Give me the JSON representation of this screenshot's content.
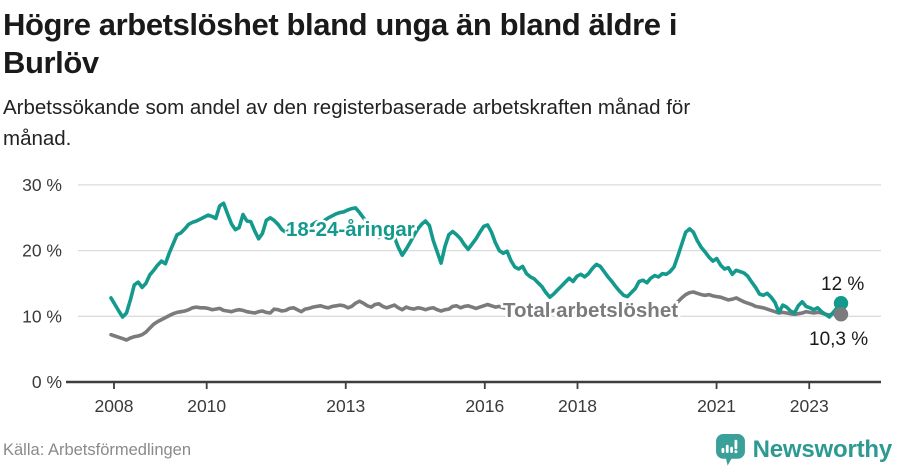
{
  "header": {
    "title_lines": [
      "Högre arbetslöshet bland unga än bland äldre i",
      "Burlöv"
    ],
    "subtitle_lines": [
      "Arbetssökande som andel av den registerbaserade arbetskraften månad för",
      "månad."
    ]
  },
  "footer": {
    "source": "Källa: Arbetsförmedlingen",
    "brand": "Newsworthy",
    "brand_icon": "newsworthy-speech-bubble-bar-chart-icon",
    "brand_color": "#2d9a92",
    "brand_icon_color": "#3ba099"
  },
  "chart_data": {
    "type": "line",
    "title": "Högre arbetslöshet bland unga än bland äldre i Burlöv",
    "subtitle": "Arbetssökande som andel av den registerbaserade arbetskraften månad för månad.",
    "unit": "%",
    "x_monthly_from": "2008-01",
    "x_monthly_to": "2023-09",
    "x_ticks": [
      2008,
      2010,
      2013,
      2016,
      2018,
      2021,
      2023
    ],
    "y_ticks": [
      0,
      10,
      20,
      30
    ],
    "y_tick_labels": [
      "0 %",
      "10 %",
      "20 %",
      "30 %"
    ],
    "ylim": [
      0,
      30
    ],
    "grid": true,
    "colors": {
      "grid": "#dcdcdc",
      "axis": "#3e3e3e",
      "tick_text": "#3a3a3a",
      "end_label_text": "#1a1a1a"
    },
    "series": [
      {
        "name": "Total arbetslöshet",
        "color": "#7b7b7e",
        "end_label": "10,3 %",
        "end_value": 10.3,
        "values": [
          7.2,
          7.0,
          6.8,
          6.6,
          6.4,
          6.7,
          6.9,
          7.0,
          7.2,
          7.6,
          8.2,
          8.8,
          9.2,
          9.5,
          9.8,
          10.1,
          10.4,
          10.6,
          10.7,
          10.8,
          11.0,
          11.3,
          11.4,
          11.3,
          11.3,
          11.2,
          11.0,
          11.1,
          11.2,
          10.9,
          10.8,
          10.7,
          10.9,
          11.0,
          10.9,
          10.7,
          10.6,
          10.5,
          10.7,
          10.8,
          10.6,
          10.5,
          11.1,
          11.0,
          10.8,
          10.9,
          11.2,
          11.3,
          11.0,
          10.7,
          11.1,
          11.2,
          11.4,
          11.5,
          11.6,
          11.4,
          11.3,
          11.5,
          11.6,
          11.7,
          11.6,
          11.3,
          11.5,
          12.0,
          12.3,
          12.0,
          11.6,
          11.4,
          11.8,
          11.9,
          11.5,
          11.3,
          11.5,
          11.7,
          11.3,
          11.0,
          11.4,
          11.2,
          11.1,
          11.3,
          11.2,
          11.0,
          11.2,
          11.3,
          11.0,
          10.8,
          11.0,
          11.1,
          11.5,
          11.6,
          11.3,
          11.5,
          11.6,
          11.4,
          11.2,
          11.4,
          11.6,
          11.8,
          11.6,
          11.4,
          11.5,
          11.3,
          11.2,
          11.4,
          11.3,
          11.1,
          11.2,
          11.0,
          11.2,
          11.1,
          10.9,
          10.8,
          10.9,
          10.7,
          10.9,
          11.0,
          10.8,
          10.9,
          10.7,
          10.6,
          10.7,
          10.8,
          10.6,
          10.7,
          10.9,
          11.0,
          10.8,
          10.7,
          10.6,
          10.5,
          10.6,
          10.7,
          10.8,
          10.7,
          10.8,
          10.9,
          11.0,
          11.1,
          11.2,
          11.1,
          11.0,
          11.1,
          11.2,
          11.3,
          11.4,
          11.6,
          12.2,
          12.8,
          13.3,
          13.6,
          13.7,
          13.5,
          13.3,
          13.2,
          13.3,
          13.1,
          13.0,
          12.9,
          12.7,
          12.5,
          12.6,
          12.8,
          12.5,
          12.2,
          12.0,
          11.8,
          11.5,
          11.4,
          11.3,
          11.1,
          10.9,
          10.7,
          10.5,
          10.6,
          10.5,
          10.4,
          10.3,
          10.4,
          10.5,
          10.7,
          10.6,
          10.5,
          10.6,
          10.5,
          10.3,
          10.2,
          10.4,
          10.3,
          10.3
        ]
      },
      {
        "name": "18-24-åringar",
        "color": "#149a8d",
        "end_label": "12 %",
        "end_value": 12.0,
        "values": [
          12.8,
          11.8,
          10.8,
          9.9,
          10.5,
          12.5,
          14.8,
          15.2,
          14.4,
          15.0,
          16.3,
          17.0,
          17.8,
          18.4,
          18.0,
          19.6,
          21.0,
          22.4,
          22.7,
          23.3,
          24.0,
          24.3,
          24.5,
          24.8,
          25.1,
          25.4,
          25.2,
          24.9,
          26.8,
          27.2,
          25.6,
          24.1,
          23.2,
          23.5,
          25.5,
          24.5,
          24.4,
          23.0,
          21.8,
          22.6,
          24.6,
          25.0,
          24.6,
          24.0,
          23.2,
          22.8,
          23.5,
          23.9,
          23.9,
          23.2,
          22.8,
          23.6,
          24.0,
          24.4,
          23.8,
          24.6,
          25.0,
          25.3,
          25.6,
          25.8,
          25.9,
          26.2,
          26.4,
          26.5,
          25.8,
          25.0,
          24.2,
          23.3,
          22.4,
          22.0,
          22.4,
          22.7,
          22.4,
          22.0,
          20.5,
          19.3,
          20.2,
          21.2,
          22.3,
          23.3,
          24.0,
          24.5,
          23.8,
          21.5,
          19.8,
          18.1,
          20.6,
          22.4,
          22.9,
          22.4,
          21.8,
          20.9,
          20.2,
          21.0,
          21.8,
          22.8,
          23.7,
          23.9,
          22.8,
          21.2,
          20.0,
          19.6,
          19.9,
          18.5,
          17.5,
          17.2,
          17.6,
          16.5,
          16.0,
          15.7,
          15.1,
          14.5,
          13.6,
          12.9,
          13.4,
          14.0,
          14.6,
          15.2,
          15.8,
          15.3,
          16.1,
          16.4,
          16.0,
          16.5,
          17.3,
          17.9,
          17.6,
          16.8,
          16.0,
          15.3,
          14.5,
          13.8,
          13.2,
          13.0,
          13.6,
          14.2,
          15.3,
          15.5,
          15.1,
          15.8,
          16.2,
          16.0,
          16.5,
          16.4,
          16.8,
          17.5,
          19.2,
          21.0,
          22.8,
          23.3,
          22.8,
          21.5,
          20.5,
          19.8,
          19.0,
          18.4,
          18.8,
          17.8,
          17.2,
          17.4,
          16.4,
          17.0,
          16.8,
          16.6,
          16.1,
          15.2,
          14.4,
          13.4,
          13.2,
          13.5,
          12.9,
          12.1,
          10.6,
          11.7,
          11.4,
          10.8,
          10.5,
          11.6,
          12.2,
          11.5,
          11.3,
          11.0,
          11.3,
          10.7,
          10.3,
          9.9,
          10.6,
          11.3,
          12.0
        ]
      }
    ],
    "legend_position": "inline-labels-on-lines"
  }
}
